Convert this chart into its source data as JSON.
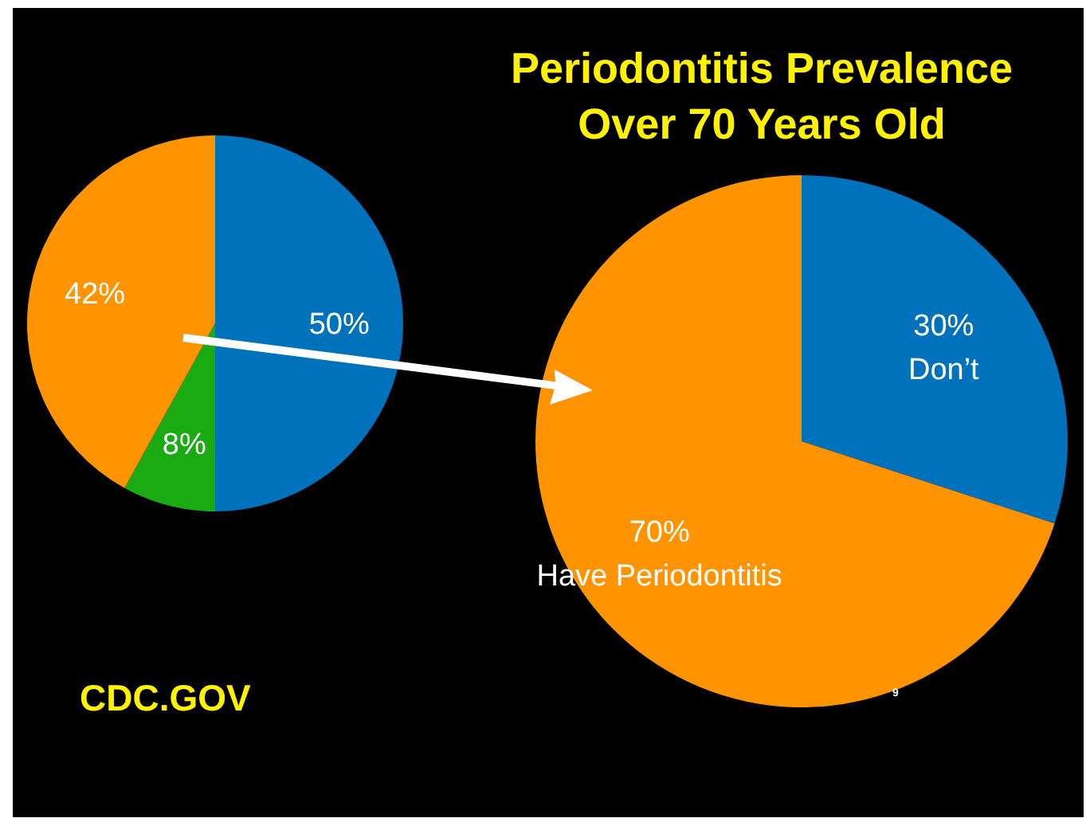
{
  "chart_data": [
    {
      "type": "pie",
      "categories": [
        null,
        null,
        null
      ],
      "values": [
        50,
        8,
        42
      ],
      "colors": [
        "#0071bb",
        "#1aaa12",
        "#ff9300"
      ],
      "value_labels": [
        "50%",
        "8%",
        "42%"
      ],
      "annotations": [
        "CDC.GOV"
      ]
    },
    {
      "type": "pie",
      "title": "Periodontitis Prevalence\nOver 70 Years Old",
      "categories": [
        "Don’t",
        "Have Periodontitis"
      ],
      "values": [
        30,
        70
      ],
      "colors": [
        "#0071bb",
        "#ff9300"
      ],
      "value_labels": [
        "30%",
        "70%"
      ],
      "annotations": [
        "9"
      ]
    }
  ]
}
